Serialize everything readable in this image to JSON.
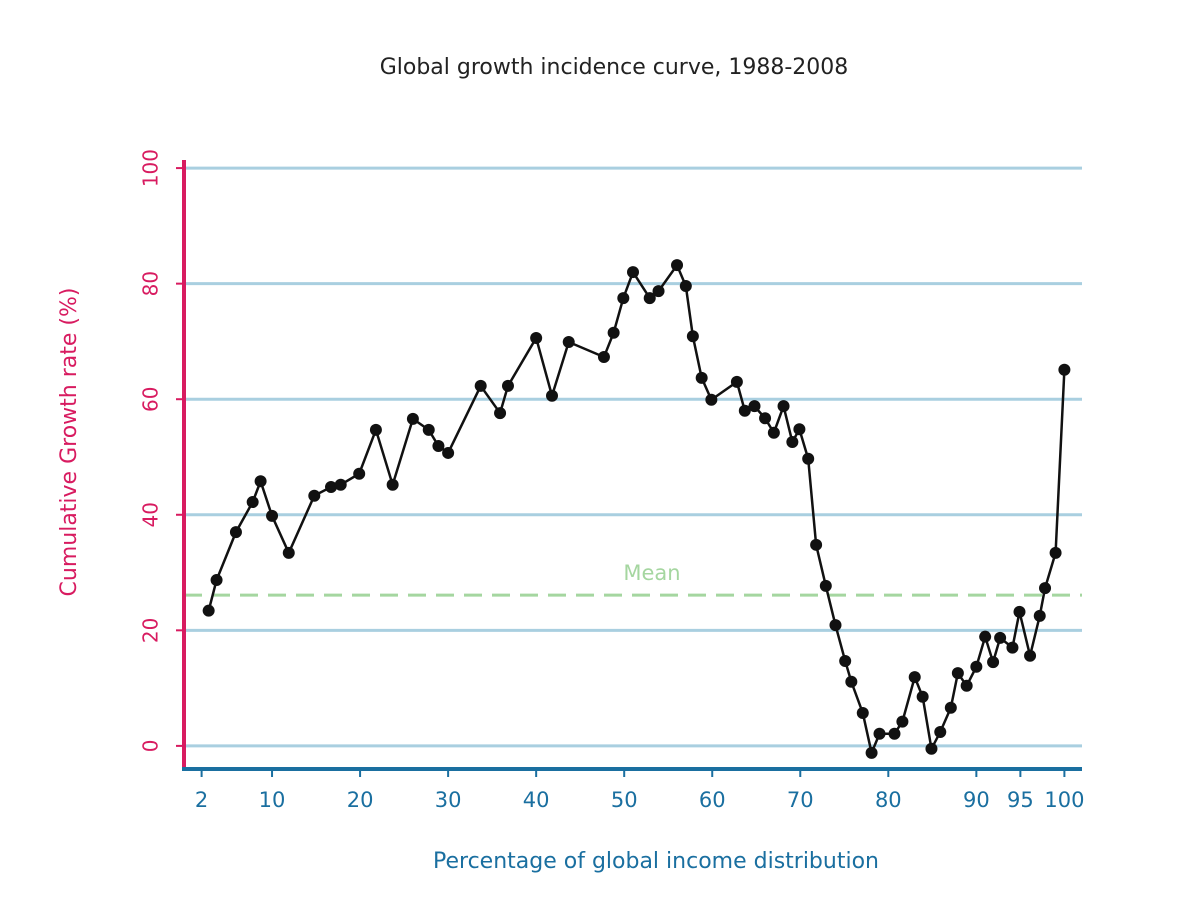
{
  "chart_data": {
    "type": "line",
    "title": "Global growth incidence curve, 1988-2008",
    "x_label": "Percentage of global income distribution",
    "y_label": "Cumulative Growth rate (%)",
    "x": [
      2.8,
      3.7,
      5.9,
      7.8,
      8.7,
      10.0,
      11.9,
      14.8,
      16.7,
      17.8,
      19.9,
      21.8,
      23.7,
      26.0,
      27.8,
      28.9,
      30.0,
      33.7,
      35.9,
      36.8,
      40.0,
      41.8,
      43.7,
      47.7,
      48.8,
      49.9,
      51.0,
      52.9,
      53.9,
      56.0,
      57.0,
      57.8,
      58.8,
      59.9,
      62.8,
      63.7,
      64.8,
      66.0,
      67.0,
      68.1,
      69.1,
      69.9,
      70.9,
      71.8,
      72.9,
      74.0,
      75.1,
      75.8,
      77.1,
      78.1,
      79.0,
      80.7,
      81.6,
      83.0,
      83.9,
      84.9,
      85.9,
      87.1,
      87.9,
      88.9,
      90.0,
      91.0,
      91.9,
      92.7,
      94.1,
      94.9,
      96.1,
      97.2,
      97.8,
      99.0,
      100.0
    ],
    "values": [
      23.4,
      28.7,
      37.0,
      42.2,
      45.8,
      39.8,
      33.4,
      43.3,
      44.8,
      45.2,
      47.1,
      54.7,
      45.2,
      56.6,
      54.7,
      51.9,
      50.7,
      62.3,
      57.6,
      62.3,
      70.6,
      60.6,
      69.9,
      67.3,
      71.5,
      77.5,
      82.0,
      77.5,
      78.7,
      83.2,
      79.6,
      70.9,
      63.7,
      59.9,
      63.0,
      58.0,
      58.8,
      56.7,
      54.2,
      58.8,
      52.6,
      54.8,
      49.7,
      34.8,
      27.7,
      20.9,
      14.7,
      11.1,
      5.7,
      -1.2,
      2.1,
      2.1,
      4.2,
      11.9,
      8.5,
      -0.5,
      2.4,
      6.6,
      12.6,
      10.4,
      13.7,
      18.9,
      14.5,
      18.7,
      17.0,
      23.2,
      15.6,
      22.5,
      27.3,
      33.4,
      65.1
    ],
    "color": "#111111",
    "mean": {
      "label": "Mean",
      "value": 26.1,
      "color": "#a5d6a0"
    },
    "xlim": [
      0,
      102
    ],
    "xticks": [
      2,
      10,
      20,
      30,
      40,
      50,
      60,
      70,
      80,
      90,
      95,
      100
    ],
    "ylim": [
      -4,
      101.4
    ],
    "yticks": [
      0,
      20,
      40,
      60,
      80,
      100
    ],
    "grid": true,
    "grid_color": "#a9cfe0",
    "x_axis_color": "#1a6fa0",
    "y_axis_color": "#d81b60"
  }
}
